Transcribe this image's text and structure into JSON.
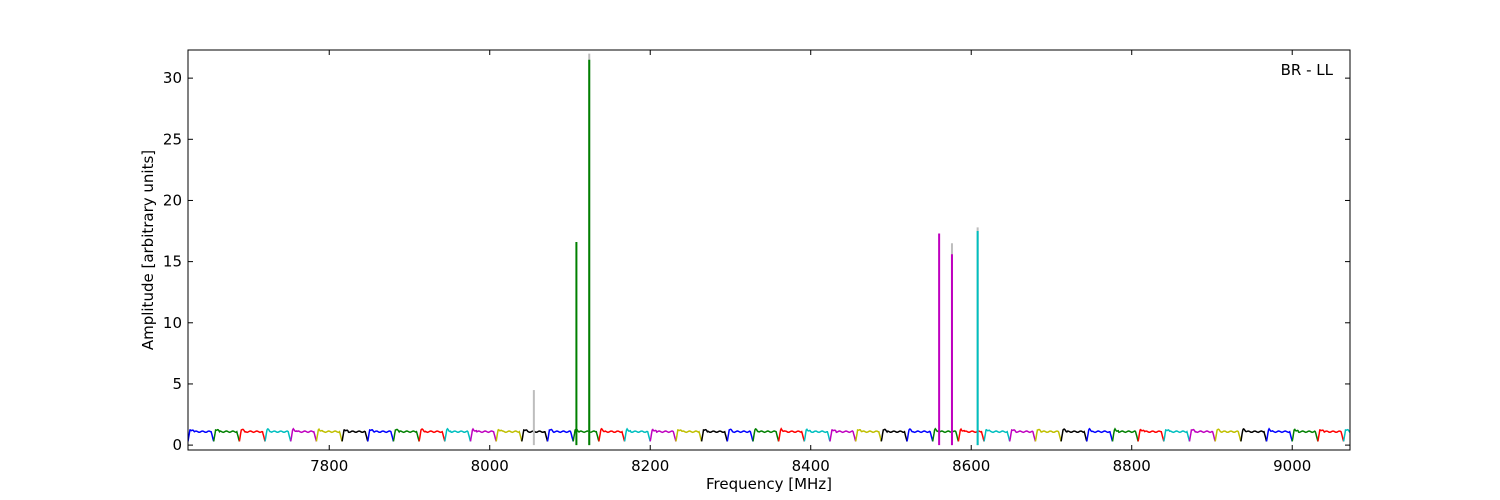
{
  "chart_data": {
    "type": "line",
    "title": "",
    "annotation": "BR - LL",
    "xlabel": "Frequency [MHz]",
    "ylabel": "Amplitude [arbitrary units]",
    "xlim": [
      7624,
      9072
    ],
    "ylim": [
      -0.4,
      32.3
    ],
    "xticks": [
      7800,
      8000,
      8200,
      8400,
      8600,
      8800,
      9000
    ],
    "yticks": [
      0,
      5,
      10,
      15,
      20,
      25,
      30
    ],
    "grid": false,
    "legend": "none",
    "band_width_mhz": 32,
    "band_start_mhz": 7624,
    "band_colors": [
      "#0000ff",
      "#008000",
      "#ff0000",
      "#00bfbf",
      "#bf00bf",
      "#bfbf00",
      "#000000"
    ],
    "baseline_amplitude": {
      "edge_low": 0.3,
      "shoulder": 1.3,
      "center": 1.1
    },
    "spikes": [
      {
        "freq": 8055,
        "amplitude": 4.5,
        "color": "#bdbdbd"
      },
      {
        "freq": 8108,
        "amplitude": 16.6,
        "color": "#008000"
      },
      {
        "freq": 8124,
        "amplitude": 32.0,
        "color": "#bdbdbd"
      },
      {
        "freq": 8124,
        "amplitude": 31.5,
        "color": "#008000"
      },
      {
        "freq": 8560,
        "amplitude": 17.3,
        "color": "#bf00bf"
      },
      {
        "freq": 8576,
        "amplitude": 16.5,
        "color": "#bdbdbd"
      },
      {
        "freq": 8576,
        "amplitude": 15.6,
        "color": "#bf00bf"
      },
      {
        "freq": 8608,
        "amplitude": 17.8,
        "color": "#bdbdbd"
      },
      {
        "freq": 8608,
        "amplitude": 17.5,
        "color": "#00bfbf"
      }
    ]
  }
}
